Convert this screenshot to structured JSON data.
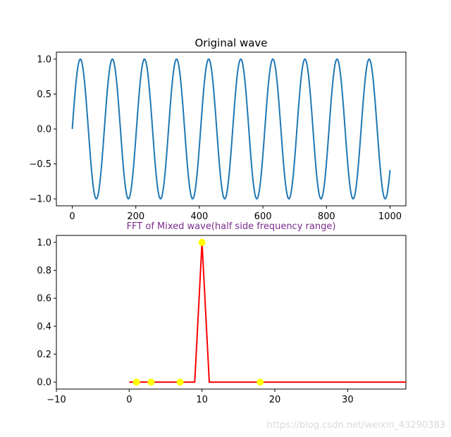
{
  "chart_data": [
    {
      "type": "line",
      "title": "Original wave",
      "series": [
        {
          "x_start": 0,
          "x_end": 1000,
          "frequency_cycles": 9.9,
          "amplitude": 1.0,
          "color": "#1f77b4"
        }
      ],
      "xlim": [
        -50,
        1050
      ],
      "ylim": [
        -1.1,
        1.1
      ],
      "xticks": [
        0,
        200,
        400,
        600,
        800,
        1000
      ],
      "xtick_labels": [
        "0",
        "200",
        "400",
        "600",
        "800",
        "1000"
      ],
      "yticks": [
        -1.0,
        -0.5,
        0.0,
        0.5,
        1.0
      ],
      "ytick_labels": [
        "−1.0",
        "−0.5",
        "0.0",
        "0.5",
        "1.0"
      ]
    },
    {
      "type": "line",
      "title": "FFT of Mixed wave(half side frequency range)",
      "title_color": "#7a2b8f",
      "line": {
        "color": "#ff0000",
        "x": [
          0,
          1,
          2,
          3,
          4,
          5,
          6,
          7,
          8,
          9,
          10,
          11,
          12,
          13,
          14,
          15,
          16,
          17,
          18,
          19,
          20,
          21,
          22,
          23,
          24,
          25,
          26,
          27,
          28,
          29,
          30,
          31,
          32,
          33,
          34,
          35,
          36,
          37,
          38,
          39
        ],
        "y": [
          0,
          0,
          0,
          0,
          0,
          0,
          0,
          0,
          0,
          0,
          1.0,
          0,
          0,
          0,
          0,
          0,
          0,
          0,
          0,
          0,
          0,
          0,
          0,
          0,
          0,
          0,
          0,
          0,
          0,
          0,
          0,
          0,
          0,
          0,
          0,
          0,
          0,
          0,
          0,
          0
        ]
      },
      "markers": {
        "color": "#ffff00",
        "x": [
          1,
          3,
          7,
          10,
          18
        ],
        "y": [
          0,
          0,
          0,
          1.0,
          0
        ]
      },
      "xlim": [
        -10,
        38
      ],
      "ylim": [
        -0.05,
        1.05
      ],
      "xticks": [
        -10,
        0,
        10,
        20,
        30
      ],
      "xtick_labels": [
        "−10",
        "0",
        "10",
        "20",
        "30"
      ],
      "yticks": [
        0.0,
        0.2,
        0.4,
        0.6,
        0.8,
        1.0
      ],
      "ytick_labels": [
        "0.0",
        "0.2",
        "0.4",
        "0.6",
        "0.8",
        "1.0"
      ]
    }
  ],
  "watermark": "https://blog.csdn.net/weixin_43290383"
}
